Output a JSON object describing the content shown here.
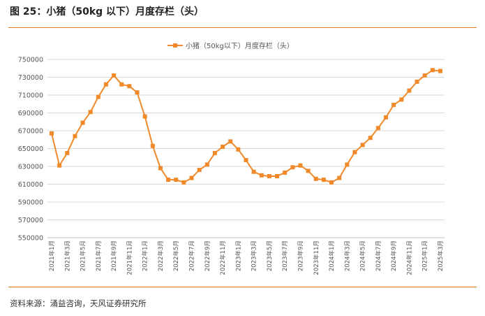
{
  "figure": {
    "title": "图 25：小猪（50kg 以下）月度存栏（头）",
    "source": "资料来源：涌益咨询，天风证券研究所"
  },
  "colors": {
    "accent": "#e07b1a",
    "series": "#f0892a",
    "grid": "#d9d9d9"
  },
  "chart_data": {
    "type": "line",
    "title": "",
    "xlabel": "",
    "ylabel": "",
    "ylim": [
      550000,
      750000
    ],
    "yticks": [
      "750000",
      "730000",
      "710000",
      "690000",
      "670000",
      "650000",
      "630000",
      "610000",
      "590000",
      "570000",
      "550000"
    ],
    "ytick_values": [
      750000,
      730000,
      710000,
      690000,
      670000,
      650000,
      630000,
      610000,
      590000,
      570000,
      550000
    ],
    "grid": "horizontal",
    "legend": "top-center",
    "x": [
      "2021年1月",
      "2021年2月",
      "2021年3月",
      "2021年4月",
      "2021年5月",
      "2021年6月",
      "2021年7月",
      "2021年8月",
      "2021年9月",
      "2021年10月",
      "2021年11月",
      "2021年12月",
      "2022年1月",
      "2022年2月",
      "2022年3月",
      "2022年4月",
      "2022年5月",
      "2022年6月",
      "2022年7月",
      "2022年8月",
      "2022年9月",
      "2022年10月",
      "2022年11月",
      "2022年12月",
      "2023年1月",
      "2023年2月",
      "2023年3月",
      "2023年4月",
      "2023年5月",
      "2023年6月",
      "2023年7月",
      "2023年8月",
      "2023年9月",
      "2023年10月",
      "2023年11月",
      "2023年12月",
      "2024年1月",
      "2024年2月",
      "2024年3月",
      "2024年4月",
      "2024年5月",
      "2024年6月",
      "2024年7月",
      "2024年8月",
      "2024年9月",
      "2024年10月",
      "2024年11月",
      "2024年12月",
      "2025年1月",
      "2025年2月",
      "2025年3月"
    ],
    "x_tick_labels": [
      "2021年1月",
      "2021年3月",
      "2021年5月",
      "2021年7月",
      "2021年9月",
      "2021年11月",
      "2022年1月",
      "2022年3月",
      "2022年5月",
      "2022年7月",
      "2022年9月",
      "2022年11月",
      "2023年1月",
      "2023年3月",
      "2023年5月",
      "2023年7月",
      "2023年9月",
      "2023年11月",
      "2024年1月",
      "2024年3月",
      "2024年5月",
      "2024年7月",
      "2024年9月",
      "2024年11月",
      "2025年1月",
      "2025年3月"
    ],
    "series": [
      {
        "name": "小猪（50kg以下）月度存栏（头）",
        "values": [
          667000,
          631000,
          645000,
          664000,
          679000,
          691000,
          708000,
          722000,
          732000,
          722000,
          720000,
          713000,
          686000,
          653000,
          628000,
          615000,
          615000,
          612000,
          617000,
          626000,
          632000,
          645000,
          652000,
          658000,
          649000,
          637000,
          624000,
          620000,
          619000,
          619000,
          623000,
          629000,
          631000,
          625000,
          616000,
          615000,
          612000,
          617000,
          632000,
          646000,
          654000,
          662000,
          673000,
          685000,
          699000,
          705000,
          715000,
          725000,
          732000,
          738000,
          737000
        ]
      }
    ]
  }
}
